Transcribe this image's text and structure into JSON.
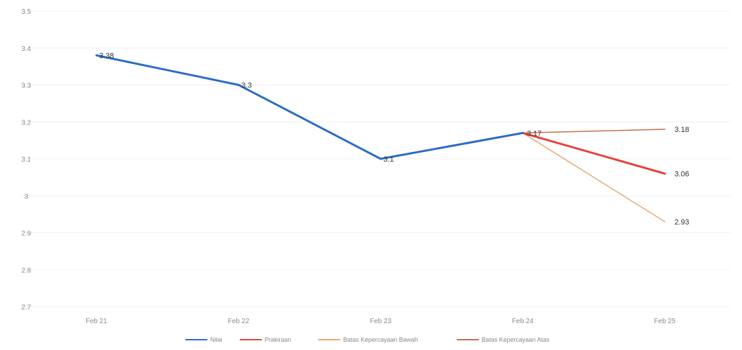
{
  "chart_data": {
    "type": "line",
    "categories": [
      "Feb 21",
      "Feb 22",
      "Feb 23",
      "Feb 24",
      "Feb 25"
    ],
    "ylim": [
      2.7,
      3.5
    ],
    "yticks": [
      "3.5",
      "3.4",
      "3.3",
      "3.2",
      "3.1",
      "3",
      "2.9",
      "2.8",
      "2.7"
    ],
    "grid": true,
    "legend_position": "bottom",
    "series": [
      {
        "name": "Nilai",
        "color": "#2b6cc4",
        "values": [
          3.38,
          3.3,
          3.1,
          3.17,
          null
        ],
        "labels": [
          "3.38",
          "3.3",
          "3.1",
          "3.17",
          ""
        ]
      },
      {
        "name": "Prakiraan",
        "color": "#e8403a",
        "values": [
          null,
          null,
          null,
          3.17,
          3.06
        ],
        "labels": [
          "",
          "",
          "",
          "",
          "3.06"
        ]
      },
      {
        "name": "Batas Kepercayaan Bawah",
        "color": "#e8a870",
        "values": [
          null,
          null,
          null,
          3.17,
          2.93
        ],
        "labels": [
          "",
          "",
          "",
          "",
          "2.93"
        ]
      },
      {
        "name": "Batas Kepercayaan Atas",
        "color": "#c0704a",
        "values": [
          null,
          null,
          null,
          3.17,
          3.18
        ],
        "labels": [
          "",
          "",
          "",
          "",
          "3.18"
        ]
      }
    ]
  }
}
